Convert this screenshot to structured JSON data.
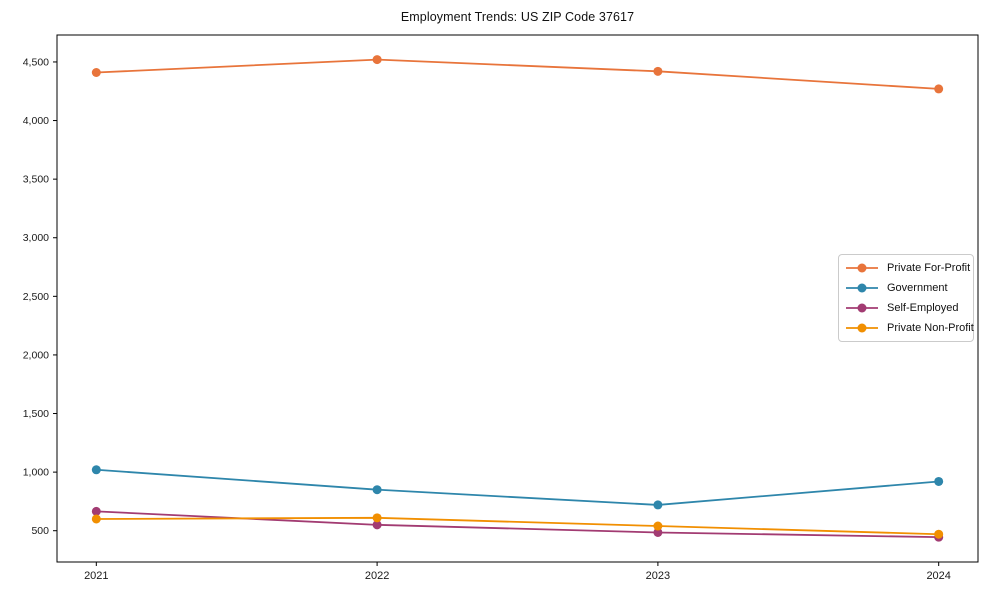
{
  "chart_data": {
    "type": "line",
    "title": "Employment Trends: US ZIP Code 37617",
    "x": [
      2021,
      2022,
      2023,
      2024
    ],
    "x_tick_labels": [
      "2021",
      "2022",
      "2023",
      "2024"
    ],
    "series": [
      {
        "name": "Private For-Profit",
        "color": "#e8743b",
        "values": [
          4410,
          4520,
          4420,
          4270
        ]
      },
      {
        "name": "Government",
        "color": "#2e86ab",
        "values": [
          1020,
          850,
          720,
          920
        ]
      },
      {
        "name": "Self-Employed",
        "color": "#a23b72",
        "values": [
          665,
          550,
          485,
          445
        ]
      },
      {
        "name": "Private Non-Profit",
        "color": "#f18f01",
        "values": [
          600,
          610,
          540,
          470
        ]
      }
    ],
    "xlim": [
      2020.86,
      2024.14
    ],
    "ylim": [
      233,
      4730
    ],
    "yticks": [
      500,
      1000,
      1500,
      2000,
      2500,
      3000,
      3500,
      4000,
      4500
    ],
    "ytick_labels": [
      "500",
      "1,000",
      "1,500",
      "2,000",
      "2,500",
      "3,000",
      "3,500",
      "4,000",
      "4,500"
    ],
    "grid": false,
    "legend_position": "center right",
    "axis_color": "#000000",
    "text_color": "#1a1a1a",
    "xlabel": "",
    "ylabel": ""
  }
}
